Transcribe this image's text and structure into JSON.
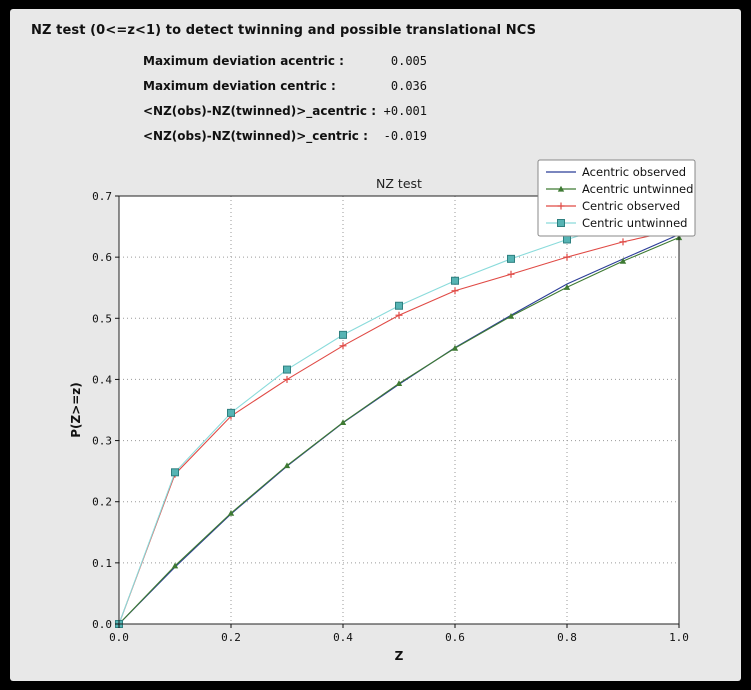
{
  "header": {
    "title": "NZ test (0<=z<1) to detect twinning and possible translational NCS"
  },
  "stats": {
    "rows": [
      {
        "label": "Maximum deviation acentric :",
        "value": "0.005"
      },
      {
        "label": "Maximum deviation centric :",
        "value": "0.036"
      },
      {
        "label": "<NZ(obs)-NZ(twinned)>_acentric :",
        "value": "+0.001"
      },
      {
        "label": "<NZ(obs)-NZ(twinned)>_centric :",
        "value": "-0.019"
      }
    ]
  },
  "chart_data": {
    "type": "line",
    "title": "NZ test",
    "xlabel": "Z",
    "ylabel": "P(Z>=z)",
    "xlim": [
      0.0,
      1.0
    ],
    "ylim": [
      0.0,
      0.7
    ],
    "xticks": [
      0.0,
      0.2,
      0.4,
      0.6,
      0.8,
      1.0
    ],
    "yticks": [
      0.0,
      0.1,
      0.2,
      0.3,
      0.4,
      0.5,
      0.6,
      0.7
    ],
    "grid": "dotted",
    "legend_position": "top-right",
    "plot_bg": "#ffffff",
    "x": [
      0.0,
      0.1,
      0.2,
      0.3,
      0.4,
      0.5,
      0.6,
      0.7,
      0.8,
      0.9,
      1.0
    ],
    "series": [
      {
        "name": "Acentric observed",
        "color": "#2b3d98",
        "marker": "none",
        "values": [
          0.0,
          0.093,
          0.18,
          0.258,
          0.329,
          0.392,
          0.452,
          0.505,
          0.556,
          0.597,
          0.637
        ]
      },
      {
        "name": "Acentric untwinned",
        "color": "#3e7a33",
        "marker": "triangle",
        "values": [
          0.0,
          0.0952,
          0.1813,
          0.2592,
          0.3297,
          0.3935,
          0.4512,
          0.5034,
          0.5507,
          0.5934,
          0.6321
        ]
      },
      {
        "name": "Centric observed",
        "color": "#e04a45",
        "marker": "plus",
        "values": [
          0.0,
          0.245,
          0.34,
          0.4,
          0.455,
          0.505,
          0.545,
          0.572,
          0.6,
          0.625,
          0.645
        ]
      },
      {
        "name": "Centric untwinned",
        "color": "#8adbdb",
        "marker": "square",
        "marker_fill": "#56b4b4",
        "marker_edge": "#2f8080",
        "values": [
          0.0,
          0.2481,
          0.3453,
          0.4161,
          0.4729,
          0.5205,
          0.5614,
          0.5972,
          0.6289,
          0.6572,
          0.6827
        ]
      }
    ]
  }
}
